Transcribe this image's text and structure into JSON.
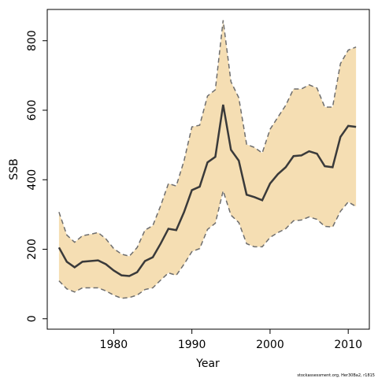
{
  "chart_data": {
    "type": "band-line",
    "x_label": "Year",
    "y_label": "SSB",
    "footer": "stockassessment.org, Her30Ba2, r1815",
    "x": [
      1973,
      1974,
      1975,
      1976,
      1977,
      1978,
      1979,
      1980,
      1981,
      1982,
      1983,
      1984,
      1985,
      1986,
      1987,
      1988,
      1989,
      1990,
      1991,
      1992,
      1993,
      1994,
      1995,
      1996,
      1997,
      1998,
      1999,
      2000,
      2001,
      2002,
      2003,
      2004,
      2005,
      2006,
      2007,
      2008,
      2009,
      2010,
      2011
    ],
    "values": [
      205,
      164,
      148,
      164,
      166,
      168,
      157,
      139,
      125,
      123,
      134,
      166,
      177,
      216,
      259,
      255,
      307,
      370,
      380,
      450,
      466,
      616,
      486,
      455,
      357,
      350,
      341,
      389,
      416,
      436,
      468,
      470,
      482,
      475,
      439,
      436,
      523,
      555,
      552
    ],
    "upper": [
      307,
      241,
      220,
      239,
      243,
      248,
      230,
      202,
      186,
      180,
      205,
      255,
      268,
      325,
      389,
      382,
      455,
      552,
      557,
      641,
      659,
      859,
      682,
      636,
      502,
      493,
      477,
      545,
      580,
      614,
      661,
      661,
      673,
      664,
      609,
      609,
      734,
      773,
      782
    ],
    "lower": [
      109,
      86,
      77,
      89,
      89,
      89,
      80,
      68,
      59,
      61,
      68,
      84,
      89,
      111,
      132,
      125,
      157,
      193,
      202,
      257,
      275,
      368,
      298,
      277,
      216,
      207,
      207,
      234,
      248,
      259,
      282,
      284,
      293,
      286,
      266,
      264,
      309,
      336,
      323
    ],
    "line_color": "#3a3a3a",
    "band_color": "#f5deb3",
    "bound_color": "#6e6e6e",
    "xlim": [
      1971.5,
      2012.7
    ],
    "ylim": [
      -30,
      890
    ],
    "xticks": [
      1980,
      1990,
      2000,
      2010
    ],
    "yticks": [
      0,
      200,
      400,
      600,
      800
    ]
  }
}
